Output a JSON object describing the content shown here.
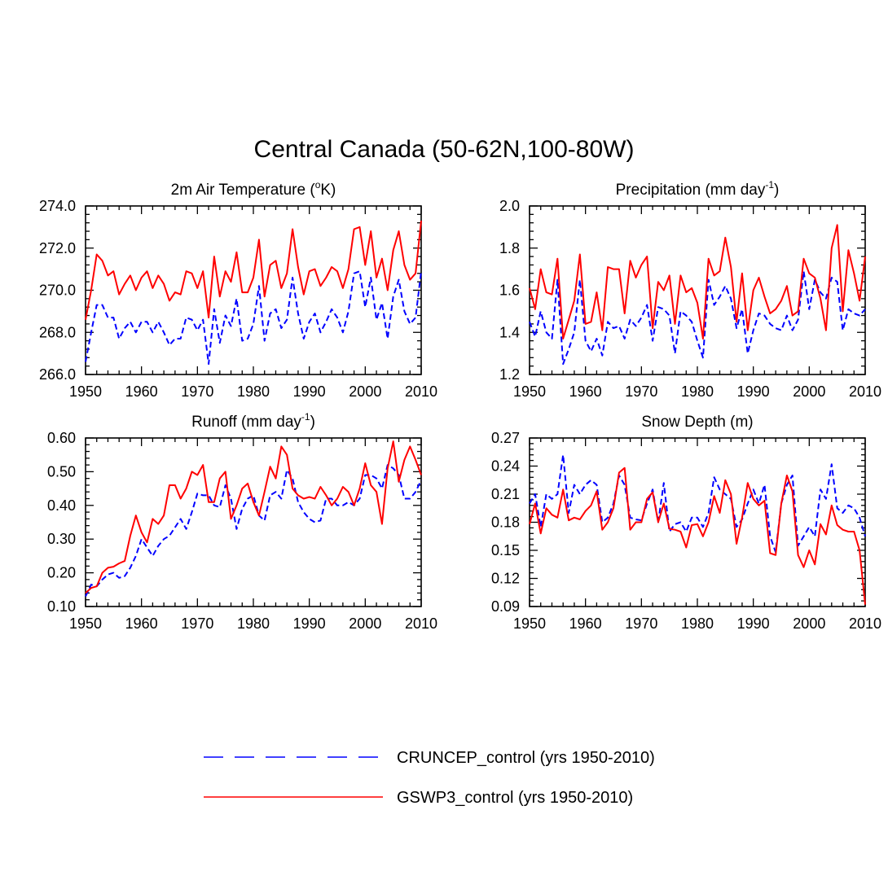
{
  "figure": {
    "title": "Central Canada (50-62N,100-80W)"
  },
  "legend": [
    {
      "label": "CRUNCEP_control (yrs 1950-2010)",
      "color": "#0000ff",
      "dash": "dashed"
    },
    {
      "label": "GSWP3_control (yrs 1950-2010)",
      "color": "#ff0000",
      "dash": "solid"
    }
  ],
  "chart_data": [
    {
      "type": "line",
      "title": "2m Air Temperature (",
      "title_sup": "o",
      "title_tail": "K)",
      "xlim": [
        1950,
        2010
      ],
      "ylim": [
        266.0,
        274.0
      ],
      "xticks": [
        "1950",
        "1960",
        "1970",
        "1980",
        "1990",
        "2000",
        "2010"
      ],
      "yticks": [
        "266.0",
        "268.0",
        "270.0",
        "272.0",
        "274.0"
      ],
      "x_start": 1950,
      "series": [
        {
          "name": "CRUNCEP_control",
          "color": "#0000ff",
          "dash": "dashed",
          "values": [
            266.6,
            268.0,
            269.3,
            269.3,
            268.7,
            268.7,
            267.7,
            268.2,
            268.5,
            268.0,
            268.5,
            268.5,
            268.0,
            268.5,
            268.0,
            267.4,
            267.7,
            267.7,
            268.7,
            268.6,
            268.1,
            268.6,
            266.5,
            269.1,
            267.5,
            268.8,
            268.3,
            269.6,
            267.6,
            267.7,
            268.4,
            270.2,
            267.6,
            268.9,
            269.1,
            268.2,
            268.6,
            270.6,
            268.9,
            267.7,
            268.5,
            268.9,
            268.0,
            268.5,
            269.1,
            268.7,
            268.0,
            269.0,
            270.8,
            270.9,
            269.2,
            270.6,
            268.6,
            269.4,
            267.7,
            269.7,
            270.5,
            269.0,
            268.4,
            268.7,
            270.9
          ]
        },
        {
          "name": "GSWP3_control",
          "color": "#ff0000",
          "dash": "solid",
          "values": [
            268.6,
            270.0,
            271.7,
            271.4,
            270.7,
            270.9,
            269.8,
            270.3,
            270.7,
            270.0,
            270.6,
            270.9,
            270.1,
            270.7,
            270.3,
            269.5,
            269.9,
            269.8,
            270.9,
            270.8,
            270.1,
            270.9,
            268.7,
            271.6,
            269.7,
            270.9,
            270.4,
            271.8,
            269.9,
            269.9,
            270.6,
            272.4,
            269.7,
            271.2,
            271.4,
            270.1,
            270.8,
            272.9,
            271.1,
            269.8,
            270.9,
            271.0,
            270.2,
            270.6,
            271.1,
            270.9,
            270.1,
            271.0,
            272.9,
            273.0,
            271.2,
            272.8,
            270.6,
            271.5,
            270.0,
            271.9,
            272.8,
            271.2,
            270.5,
            270.8,
            273.3
          ]
        }
      ]
    },
    {
      "type": "line",
      "title": "Precipitation (mm day",
      "title_sup": "-1",
      "title_tail": ")",
      "xlim": [
        1950,
        2010
      ],
      "ylim": [
        1.2,
        2.0
      ],
      "xticks": [
        "1950",
        "1960",
        "1970",
        "1980",
        "1990",
        "2000",
        "2010"
      ],
      "yticks": [
        "1.2",
        "1.4",
        "1.6",
        "1.8",
        "2.0"
      ],
      "x_start": 1950,
      "series": [
        {
          "name": "CRUNCEP_control",
          "color": "#0000ff",
          "dash": "dashed",
          "values": [
            1.45,
            1.38,
            1.5,
            1.4,
            1.37,
            1.65,
            1.25,
            1.32,
            1.4,
            1.65,
            1.36,
            1.31,
            1.37,
            1.29,
            1.45,
            1.42,
            1.43,
            1.37,
            1.46,
            1.43,
            1.47,
            1.53,
            1.36,
            1.52,
            1.51,
            1.48,
            1.3,
            1.5,
            1.48,
            1.45,
            1.36,
            1.28,
            1.65,
            1.53,
            1.57,
            1.62,
            1.56,
            1.42,
            1.51,
            1.3,
            1.41,
            1.49,
            1.48,
            1.44,
            1.42,
            1.41,
            1.48,
            1.41,
            1.46,
            1.69,
            1.51,
            1.65,
            1.59,
            1.56,
            1.66,
            1.64,
            1.41,
            1.51,
            1.49,
            1.48,
            1.51
          ]
        },
        {
          "name": "GSWP3_control",
          "color": "#ff0000",
          "dash": "solid",
          "values": [
            1.61,
            1.51,
            1.7,
            1.59,
            1.58,
            1.75,
            1.37,
            1.46,
            1.55,
            1.77,
            1.44,
            1.45,
            1.59,
            1.41,
            1.71,
            1.7,
            1.7,
            1.49,
            1.74,
            1.66,
            1.72,
            1.76,
            1.42,
            1.64,
            1.6,
            1.67,
            1.44,
            1.67,
            1.59,
            1.61,
            1.54,
            1.37,
            1.75,
            1.67,
            1.69,
            1.85,
            1.71,
            1.45,
            1.68,
            1.41,
            1.6,
            1.66,
            1.57,
            1.49,
            1.51,
            1.55,
            1.62,
            1.48,
            1.5,
            1.75,
            1.68,
            1.66,
            1.56,
            1.41,
            1.8,
            1.91,
            1.5,
            1.79,
            1.68,
            1.55,
            1.76
          ]
        }
      ]
    },
    {
      "type": "line",
      "title": "Runoff (mm day",
      "title_sup": "-1",
      "title_tail": ")",
      "xlim": [
        1950,
        2010
      ],
      "ylim": [
        0.1,
        0.6
      ],
      "xticks": [
        "1950",
        "1960",
        "1970",
        "1980",
        "1990",
        "2000",
        "2010"
      ],
      "yticks": [
        "0.10",
        "0.20",
        "0.30",
        "0.40",
        "0.50",
        "0.60"
      ],
      "x_start": 1950,
      "series": [
        {
          "name": "CRUNCEP_control",
          "color": "#0000ff",
          "dash": "dashed",
          "values": [
            0.13,
            0.165,
            0.16,
            0.18,
            0.195,
            0.2,
            0.185,
            0.19,
            0.215,
            0.25,
            0.3,
            0.275,
            0.25,
            0.28,
            0.3,
            0.31,
            0.335,
            0.36,
            0.33,
            0.38,
            0.435,
            0.43,
            0.43,
            0.4,
            0.395,
            0.46,
            0.42,
            0.33,
            0.39,
            0.42,
            0.43,
            0.37,
            0.355,
            0.43,
            0.44,
            0.42,
            0.505,
            0.48,
            0.41,
            0.38,
            0.36,
            0.35,
            0.355,
            0.42,
            0.42,
            0.4,
            0.4,
            0.41,
            0.4,
            0.42,
            0.49,
            0.49,
            0.48,
            0.45,
            0.52,
            0.51,
            0.49,
            0.42,
            0.42,
            0.44,
            0.475
          ]
        },
        {
          "name": "GSWP3_control",
          "color": "#ff0000",
          "dash": "solid",
          "values": [
            0.14,
            0.155,
            0.16,
            0.2,
            0.215,
            0.218,
            0.228,
            0.235,
            0.31,
            0.37,
            0.32,
            0.29,
            0.36,
            0.345,
            0.37,
            0.46,
            0.46,
            0.42,
            0.45,
            0.5,
            0.49,
            0.52,
            0.41,
            0.41,
            0.48,
            0.5,
            0.36,
            0.4,
            0.45,
            0.465,
            0.41,
            0.37,
            0.44,
            0.515,
            0.48,
            0.575,
            0.55,
            0.45,
            0.43,
            0.42,
            0.425,
            0.42,
            0.455,
            0.43,
            0.4,
            0.42,
            0.455,
            0.44,
            0.4,
            0.45,
            0.525,
            0.46,
            0.44,
            0.345,
            0.51,
            0.59,
            0.47,
            0.535,
            0.575,
            0.535,
            0.49
          ]
        }
      ]
    },
    {
      "type": "line",
      "title": "Snow Depth (m)",
      "title_sup": "",
      "title_tail": "",
      "xlim": [
        1950,
        2010
      ],
      "ylim": [
        0.09,
        0.27
      ],
      "xticks": [
        "1950",
        "1960",
        "1970",
        "1980",
        "1990",
        "2000",
        "2010"
      ],
      "yticks": [
        "0.09",
        "0.12",
        "0.15",
        "0.18",
        "0.21",
        "0.24",
        "0.27"
      ],
      "x_start": 1950,
      "series": [
        {
          "name": "CRUNCEP_control",
          "color": "#0000ff",
          "dash": "dashed",
          "values": [
            0.2,
            0.21,
            0.175,
            0.21,
            0.205,
            0.21,
            0.252,
            0.19,
            0.22,
            0.21,
            0.22,
            0.225,
            0.22,
            0.18,
            0.185,
            0.2,
            0.23,
            0.22,
            0.185,
            0.183,
            0.182,
            0.2,
            0.215,
            0.18,
            0.222,
            0.17,
            0.178,
            0.18,
            0.17,
            0.185,
            0.185,
            0.175,
            0.19,
            0.228,
            0.215,
            0.21,
            0.205,
            0.175,
            0.183,
            0.2,
            0.215,
            0.2,
            0.22,
            0.165,
            0.148,
            0.2,
            0.22,
            0.23,
            0.155,
            0.165,
            0.175,
            0.165,
            0.215,
            0.205,
            0.242,
            0.195,
            0.19,
            0.198,
            0.195,
            0.185,
            0.165
          ]
        },
        {
          "name": "GSWP3_control",
          "color": "#ff0000",
          "dash": "solid",
          "values": [
            0.178,
            0.2,
            0.168,
            0.195,
            0.188,
            0.185,
            0.215,
            0.182,
            0.185,
            0.183,
            0.192,
            0.198,
            0.213,
            0.172,
            0.18,
            0.195,
            0.233,
            0.238,
            0.172,
            0.18,
            0.18,
            0.205,
            0.212,
            0.18,
            0.2,
            0.173,
            0.172,
            0.17,
            0.153,
            0.177,
            0.178,
            0.165,
            0.18,
            0.208,
            0.19,
            0.225,
            0.21,
            0.157,
            0.185,
            0.222,
            0.205,
            0.198,
            0.203,
            0.147,
            0.145,
            0.2,
            0.23,
            0.213,
            0.145,
            0.132,
            0.15,
            0.135,
            0.178,
            0.167,
            0.198,
            0.177,
            0.172,
            0.17,
            0.17,
            0.15,
            0.092
          ]
        }
      ]
    }
  ]
}
